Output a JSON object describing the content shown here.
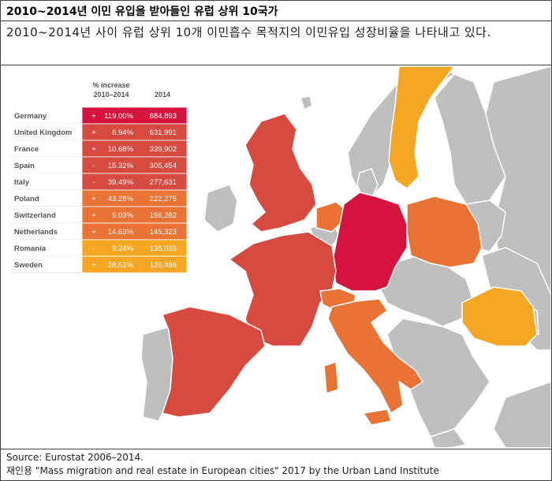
{
  "header": {
    "title": "2010~2014년 이민 유입을 받아들인 유럽 상위 10국가",
    "description": "2010~2014년 사이 유럽 상위 10개 이민흡수 목적지의 이민유입 성장비율을 나타내고 있다."
  },
  "footer": {
    "source": "Source: Eurostat 2006–2014.",
    "reuse": "재인용 \"Mass migration and real estate in European cities\" 2017 by the Urban Land Institute"
  },
  "colors": {
    "background": "#ffffff",
    "land_other": "#bfbfbf",
    "border": "#ffffff",
    "rank_1": "#d4143f",
    "rank_2_5": "#d64a3f",
    "rank_6_8": "#e87334",
    "rank_9_10": "#f5a623"
  },
  "chart_data": {
    "type": "table",
    "columns": [
      "% increase\n2010–2014",
      "2014"
    ],
    "rows": [
      {
        "country": "Germany",
        "sign": "+",
        "increase": "119.00%",
        "value": "884,893",
        "color": "#d4143f"
      },
      {
        "country": "United Kingdom",
        "sign": "+",
        "increase": "6.94%",
        "value": "631,991",
        "color": "#d64a3f"
      },
      {
        "country": "France",
        "sign": "+",
        "increase": "10.68%",
        "value": "339,902",
        "color": "#d64a3f"
      },
      {
        "country": "Spain",
        "sign": "-",
        "increase": "15.32%",
        "value": "305,454",
        "color": "#d64a3f"
      },
      {
        "country": "Italy",
        "sign": "-",
        "increase": "39.49%",
        "value": "277,631",
        "color": "#d64a3f"
      },
      {
        "country": "Poland",
        "sign": "+",
        "increase": "43.28%",
        "value": "222,275",
        "color": "#e87334"
      },
      {
        "country": "Switzerland",
        "sign": "+",
        "increase": "5.03%",
        "value": "156,282",
        "color": "#e87334"
      },
      {
        "country": "Netherlands",
        "sign": "+",
        "increase": "14.63%",
        "value": "145,323",
        "color": "#e87334"
      },
      {
        "country": "Romania",
        "sign": "-",
        "increase": "9.24%",
        "value": "136,035",
        "color": "#f5a623"
      },
      {
        "country": "Sweden",
        "sign": "+",
        "increase": "28.51%",
        "value": "126,966",
        "color": "#f5a623"
      }
    ]
  }
}
